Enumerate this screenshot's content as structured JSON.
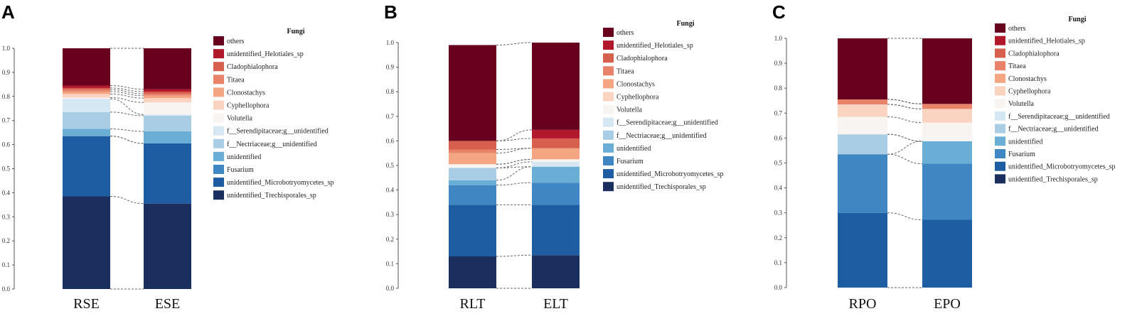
{
  "legend_title": "Fungi",
  "taxa": [
    "others",
    "unidentified_Helotiales_sp",
    "Cladophialophora",
    "Titaea",
    "Clonostachys",
    "Cyphellophora",
    "Volutella",
    "f__Serendipitaceae;g__unidentified",
    "f__Nectriaceae;g__unidentified",
    "unidentified",
    "Fusarium",
    "unidentified_Microbotryomycetes_sp",
    "unidentified_Trechisporales_sp"
  ],
  "colors": {
    "others": "#67001f",
    "unidentified_Helotiales_sp": "#b2182b",
    "Cladophialophora": "#d6604d",
    "Titaea": "#e8836a",
    "Clonostachys": "#f4a582",
    "Cyphellophora": "#fbd3c1",
    "Volutella": "#f7f4f2",
    "f__Serendipitaceae;g__unidentified": "#d6e7f4",
    "f__Nectriaceae;g__unidentified": "#a9cde4",
    "unidentified": "#6aaed6",
    "Fusarium": "#3f87c2",
    "unidentified_Microbotryomycetes_sp": "#1f5da3",
    "unidentified_Trechisporales_sp": "#1b2f5e"
  },
  "chart_data": [
    {
      "type": "bar",
      "stacked": true,
      "panel": "A",
      "categories": [
        "RSE",
        "ESE"
      ],
      "ylim": [
        0,
        1.0
      ],
      "yticks": [
        "0.0",
        "0.1",
        "0.2",
        "0.3",
        "0.4",
        "0.5",
        "0.6",
        "0.7",
        "0.8",
        "0.9",
        "1.0"
      ],
      "series": [
        {
          "name": "unidentified_Trechisporales_sp",
          "values": [
            0.385,
            0.355
          ]
        },
        {
          "name": "unidentified_Microbotryomycetes_sp",
          "values": [
            0.25,
            0.25
          ]
        },
        {
          "name": "Fusarium",
          "values": [
            0.0,
            0.0
          ]
        },
        {
          "name": "unidentified",
          "values": [
            0.03,
            0.05
          ]
        },
        {
          "name": "f__Nectriaceae;g__unidentified",
          "values": [
            0.07,
            0.065
          ]
        },
        {
          "name": "f__Serendipitaceae;g__unidentified",
          "values": [
            0.055,
            0.005
          ]
        },
        {
          "name": "Volutella",
          "values": [
            0.005,
            0.05
          ]
        },
        {
          "name": "Cyphellophora",
          "values": [
            0.015,
            0.018
          ]
        },
        {
          "name": "Clonostachys",
          "values": [
            0.01,
            0.01
          ]
        },
        {
          "name": "Titaea",
          "values": [
            0.008,
            0.008
          ]
        },
        {
          "name": "Cladophialophora",
          "values": [
            0.007,
            0.009
          ]
        },
        {
          "name": "unidentified_Helotiales_sp",
          "values": [
            0.01,
            0.01
          ]
        },
        {
          "name": "others",
          "values": [
            0.155,
            0.17
          ]
        }
      ]
    },
    {
      "type": "bar",
      "stacked": true,
      "panel": "B",
      "categories": [
        "RLT",
        "ELT"
      ],
      "ylim": [
        0,
        1.0
      ],
      "yticks": [
        "0.0",
        "0.1",
        "0.2",
        "0.3",
        "0.4",
        "0.5",
        "0.6",
        "0.7",
        "0.8",
        "0.9",
        "1.0"
      ],
      "series": [
        {
          "name": "unidentified_Trechisporales_sp",
          "values": [
            0.13,
            0.135
          ]
        },
        {
          "name": "unidentified_Microbotryomycetes_sp",
          "values": [
            0.21,
            0.205
          ]
        },
        {
          "name": "Fusarium",
          "values": [
            0.08,
            0.09
          ]
        },
        {
          "name": "unidentified",
          "values": [
            0.02,
            0.065
          ]
        },
        {
          "name": "f__Nectriaceae;g__unidentified",
          "values": [
            0.05,
            0.0
          ]
        },
        {
          "name": "f__Serendipitaceae;g__unidentified",
          "values": [
            0.0,
            0.02
          ]
        },
        {
          "name": "Volutella",
          "values": [
            0.015,
            0.01
          ]
        },
        {
          "name": "Cyphellophora",
          "values": [
            0.0,
            0.0
          ]
        },
        {
          "name": "Clonostachys",
          "values": [
            0.045,
            0.045
          ]
        },
        {
          "name": "Titaea",
          "values": [
            0.015,
            0.0
          ]
        },
        {
          "name": "Cladophialophora",
          "values": [
            0.035,
            0.04
          ]
        },
        {
          "name": "unidentified_Helotiales_sp",
          "values": [
            0.0,
            0.035
          ]
        },
        {
          "name": "others",
          "values": [
            0.39,
            0.355
          ]
        }
      ]
    },
    {
      "type": "bar",
      "stacked": true,
      "panel": "C",
      "categories": [
        "RPO",
        "EPO"
      ],
      "ylim": [
        0,
        1.0
      ],
      "yticks": [
        "0.0",
        "0.1",
        "0.2",
        "0.3",
        "0.4",
        "0.5",
        "0.6",
        "0.7",
        "0.8",
        "0.9",
        "1.0"
      ],
      "series": [
        {
          "name": "unidentified_Trechisporales_sp",
          "values": [
            0.0,
            0.0
          ]
        },
        {
          "name": "unidentified_Microbotryomycetes_sp",
          "values": [
            0.3,
            0.272
          ]
        },
        {
          "name": "Fusarium",
          "values": [
            0.235,
            0.225
          ]
        },
        {
          "name": "unidentified",
          "values": [
            0.0,
            0.09
          ]
        },
        {
          "name": "f__Nectriaceae;g__unidentified",
          "values": [
            0.08,
            0.0
          ]
        },
        {
          "name": "f__Serendipitaceae;g__unidentified",
          "values": [
            0.0,
            0.0
          ]
        },
        {
          "name": "Volutella",
          "values": [
            0.07,
            0.075
          ]
        },
        {
          "name": "Cyphellophora",
          "values": [
            0.05,
            0.055
          ]
        },
        {
          "name": "Clonostachys",
          "values": [
            0.0,
            0.0
          ]
        },
        {
          "name": "Titaea",
          "values": [
            0.02,
            0.02
          ]
        },
        {
          "name": "Cladophialophora",
          "values": [
            0.0,
            0.0
          ]
        },
        {
          "name": "unidentified_Helotiales_sp",
          "values": [
            0.0,
            0.0
          ]
        },
        {
          "name": "others",
          "values": [
            0.245,
            0.263
          ]
        }
      ]
    }
  ]
}
